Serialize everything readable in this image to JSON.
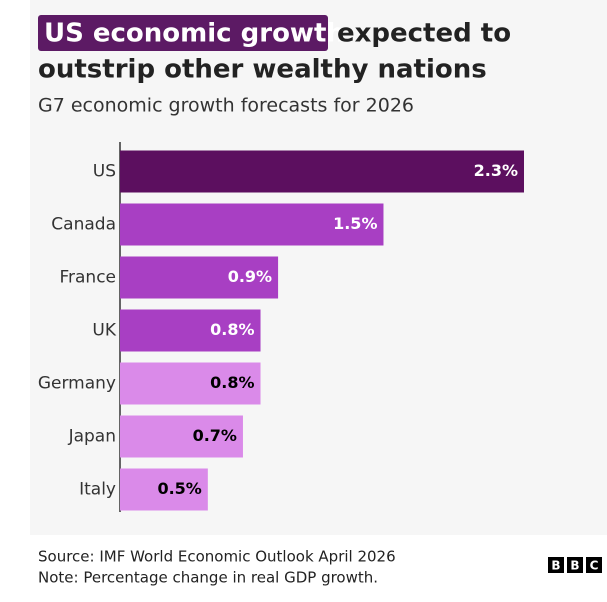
{
  "chart_data": {
    "type": "barh",
    "title_highlight": "US economic growth",
    "title_rest_line1": "expected to",
    "title_line2": "outstrip other wealthy nations",
    "subtitle": "G7 economic growth forecasts for 2026",
    "categories": [
      "US",
      "Canada",
      "France",
      "UK",
      "Germany",
      "Japan",
      "Italy"
    ],
    "values": [
      2.3,
      1.5,
      0.9,
      0.8,
      0.8,
      0.7,
      0.5
    ],
    "value_labels": [
      "2.3%",
      "1.5%",
      "0.9%",
      "0.8%",
      "0.8%",
      "0.7%",
      "0.5%"
    ],
    "colors": [
      "#5c0f5f",
      "#a83fc3",
      "#a83fc3",
      "#a83fc3",
      "#da8ae9",
      "#da8ae9",
      "#da8ae9"
    ],
    "label_colors": [
      "#ffffff",
      "#ffffff",
      "#ffffff",
      "#ffffff",
      "#000000",
      "#000000",
      "#000000"
    ],
    "xlim": [
      0,
      2.3
    ],
    "source": "Source: IMF World Economic Outlook April 2026",
    "note": "Note: Percentage change in real GDP growth.",
    "logo": [
      "B",
      "B",
      "C"
    ]
  }
}
